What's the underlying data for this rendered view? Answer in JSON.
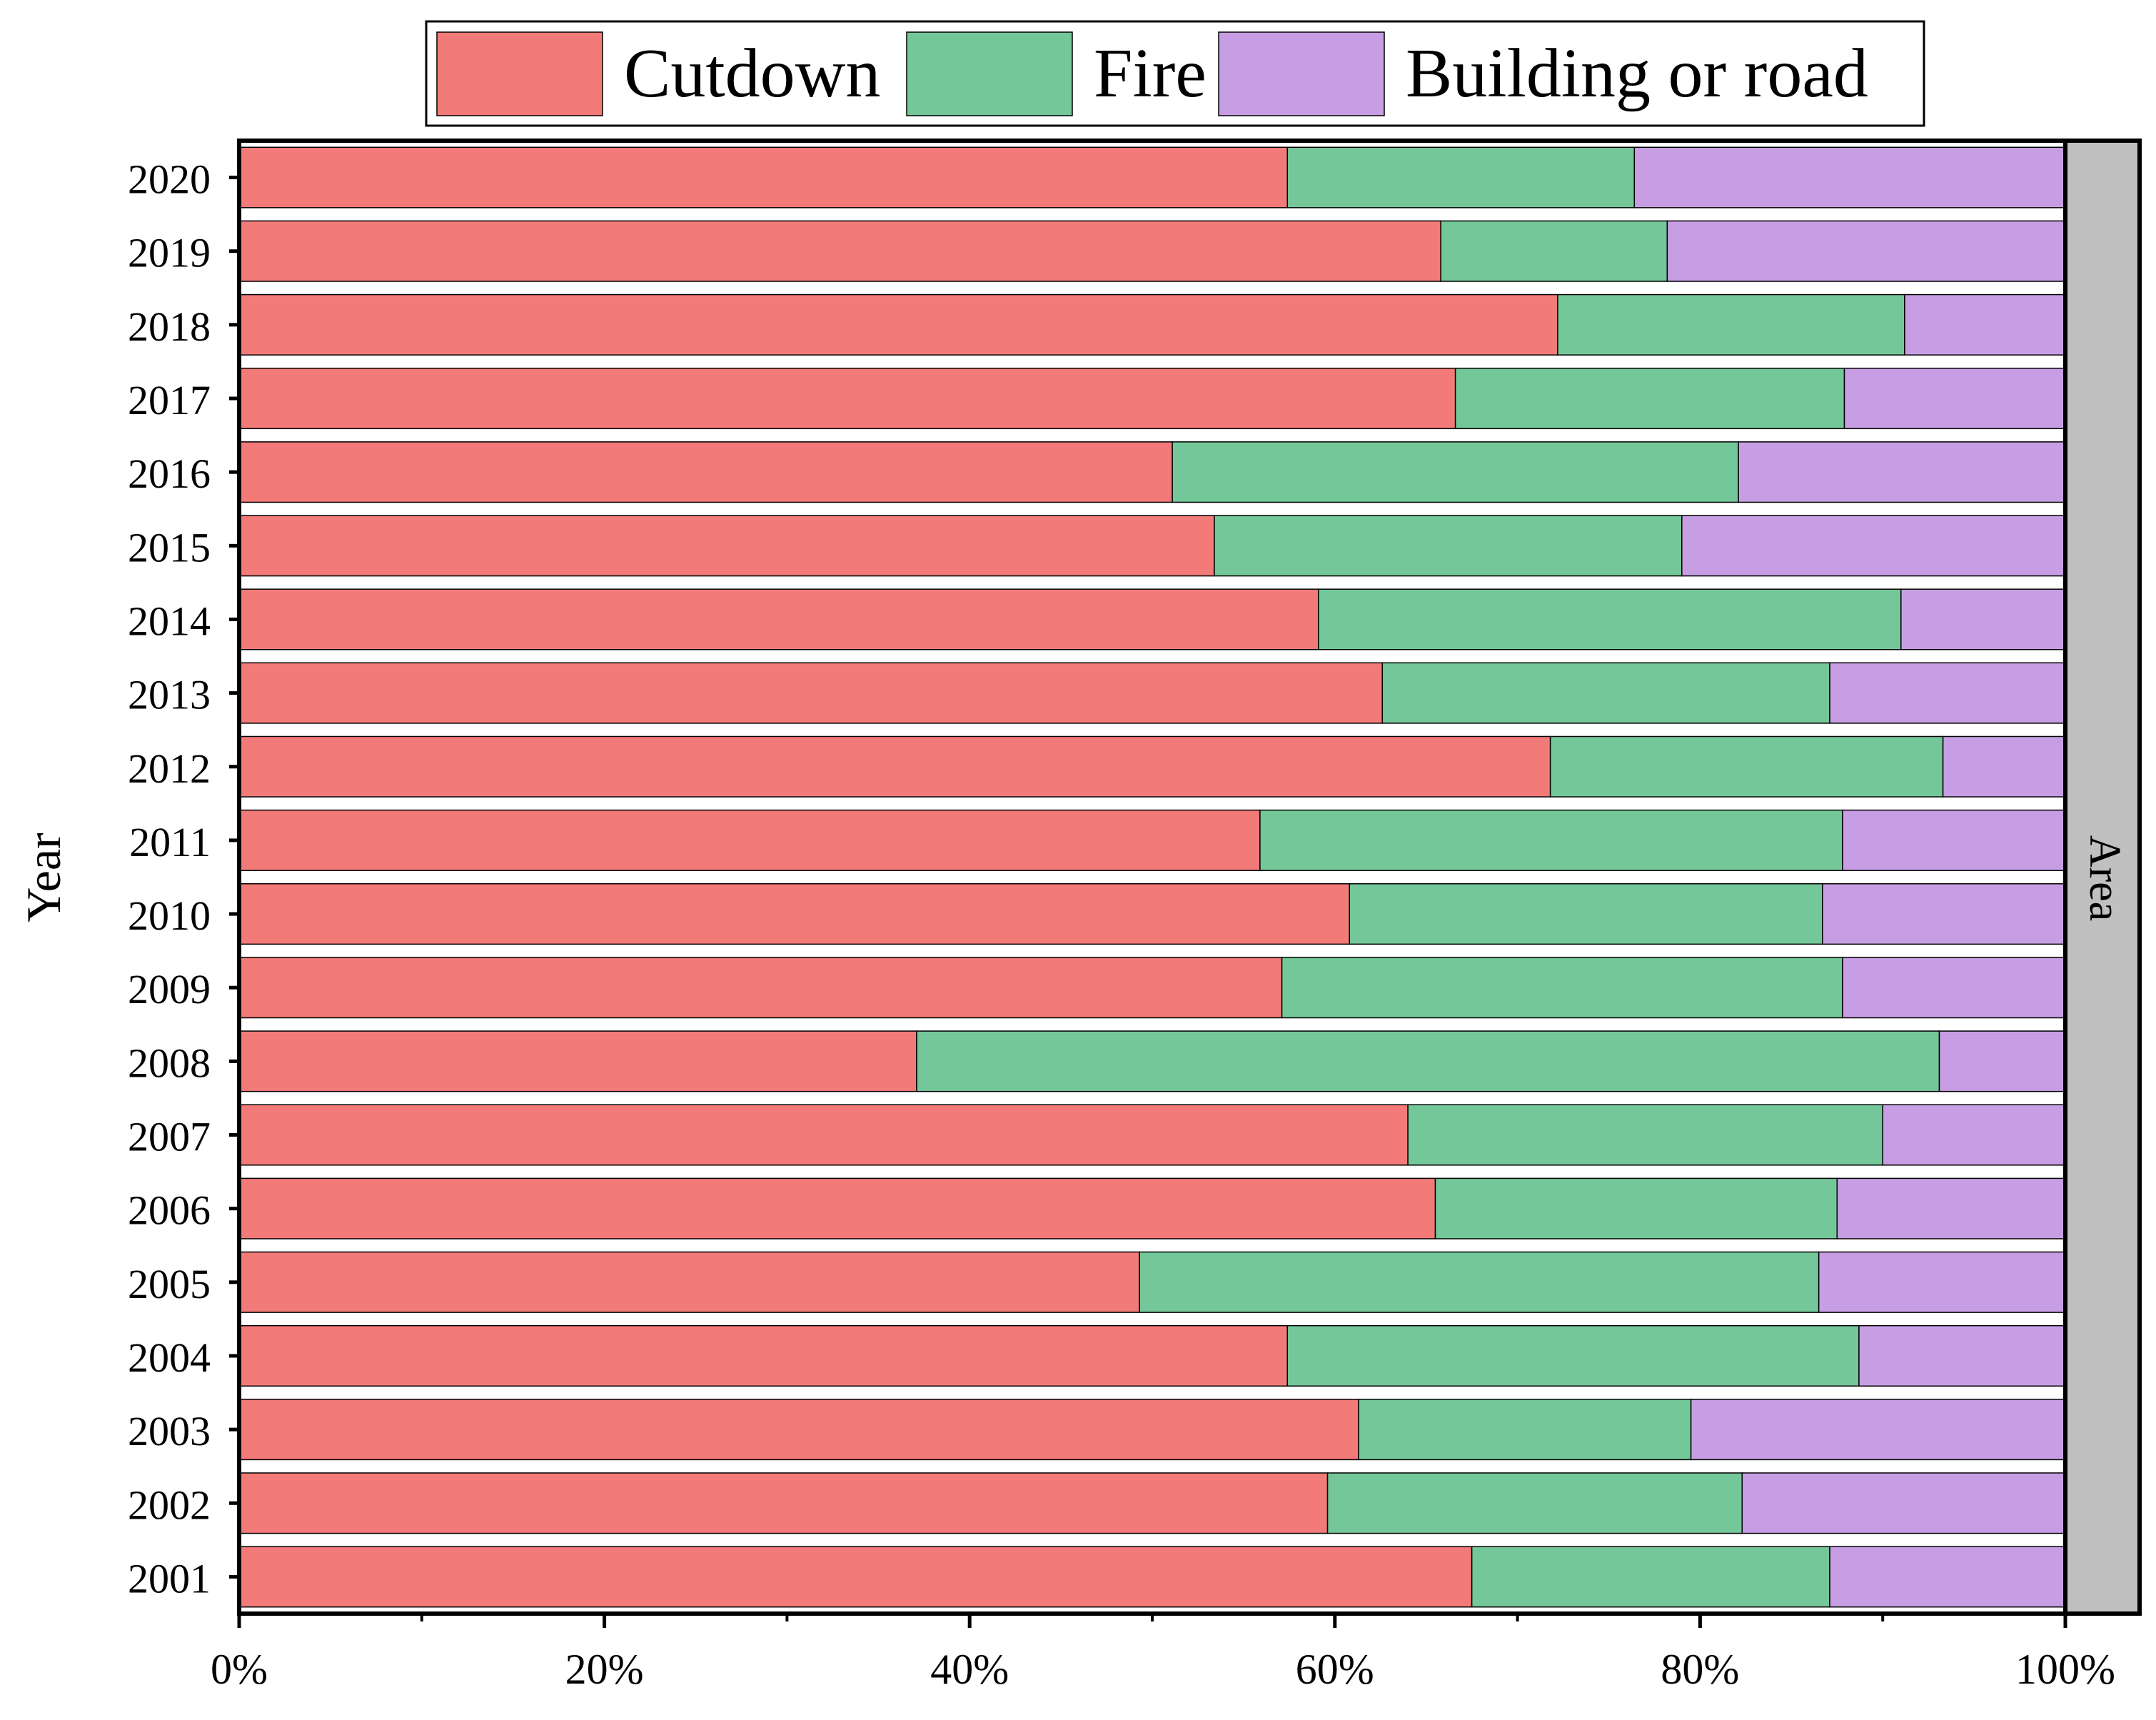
{
  "chart_data": {
    "type": "bar",
    "orientation": "horizontal",
    "stacked": "percent",
    "ylabel": "Year",
    "xlabel": "",
    "facet_label": "Area",
    "xlim": [
      0,
      100
    ],
    "x_tick_labels": [
      "0%",
      "20%",
      "40%",
      "60%",
      "80%",
      "100%"
    ],
    "x_tick_values": [
      0,
      20,
      40,
      60,
      80,
      100
    ],
    "legend_position": "top",
    "categories": [
      "2001",
      "2002",
      "2003",
      "2004",
      "2005",
      "2006",
      "2007",
      "2008",
      "2009",
      "2010",
      "2011",
      "2012",
      "2013",
      "2014",
      "2015",
      "2016",
      "2017",
      "2018",
      "2019",
      "2020"
    ],
    "series": [
      {
        "name": "Cutdown",
        "color": "#f27a78",
        "values": [
          67.5,
          59.6,
          61.3,
          57.4,
          49.3,
          65.5,
          64.0,
          37.1,
          57.1,
          60.8,
          55.9,
          71.8,
          62.6,
          59.1,
          53.4,
          51.1,
          66.6,
          72.2,
          65.8,
          57.4
        ]
      },
      {
        "name": "Fire",
        "color": "#74c799",
        "values": [
          19.6,
          22.7,
          18.2,
          31.3,
          37.2,
          22.0,
          26.0,
          56.0,
          30.7,
          25.9,
          31.9,
          21.5,
          24.5,
          31.9,
          25.6,
          31.0,
          21.3,
          19.0,
          12.4,
          19.0
        ]
      },
      {
        "name": "Building or road",
        "color": "#c79ee3",
        "values": [
          12.9,
          17.7,
          20.5,
          11.3,
          13.5,
          12.5,
          10.0,
          6.9,
          12.2,
          13.3,
          12.2,
          6.7,
          12.9,
          9.0,
          21.0,
          17.9,
          12.1,
          8.8,
          21.8,
          23.6
        ]
      }
    ],
    "grid": false,
    "facet_strip_color": "#c0c0c0"
  }
}
